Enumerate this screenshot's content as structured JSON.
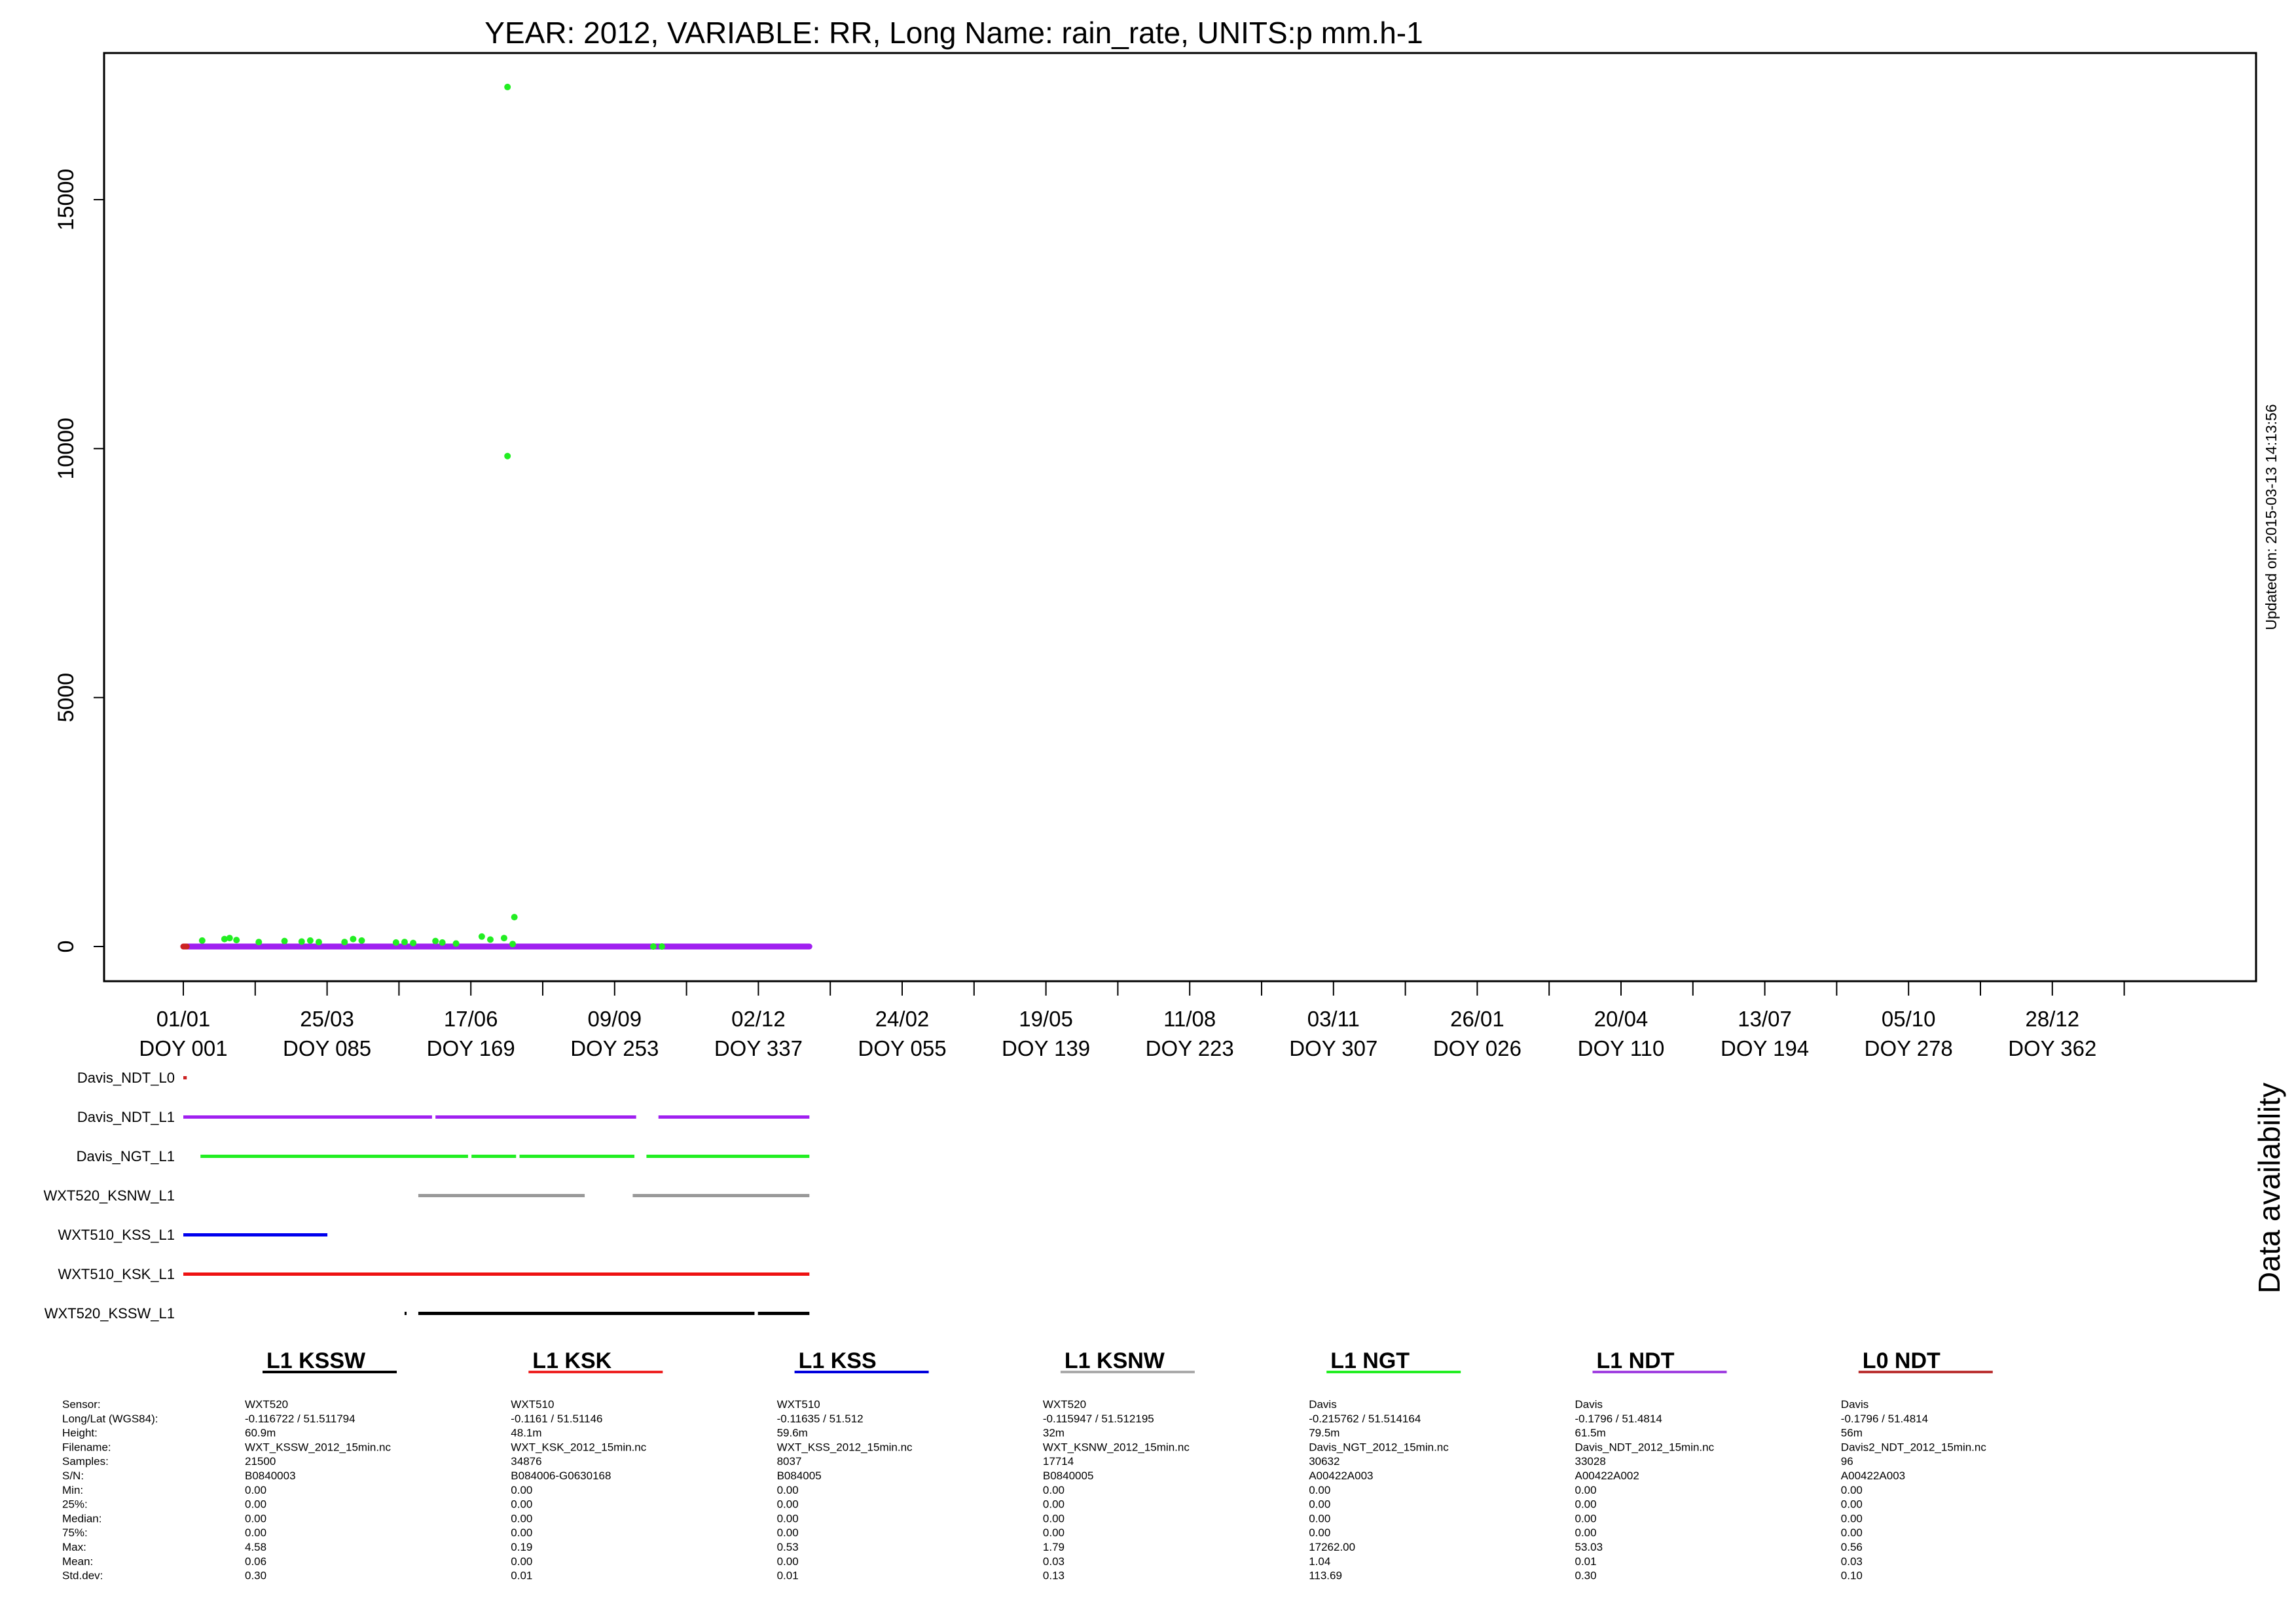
{
  "chart_data": {
    "type": "scatter",
    "title": "YEAR: 2012, VARIABLE: RR, Long Name: rain_rate, UNITS:p mm.h-1",
    "updated": "Updated on: 2015-03-13 14:13:56",
    "ylim": [
      -700,
      17700
    ],
    "y_ticks": [
      0,
      5000,
      10000,
      15000
    ],
    "y_tick_labels": [
      "0",
      "5000",
      "10000",
      "15000"
    ],
    "x_date_labels": [
      "01/01",
      "25/03",
      "17/06",
      "09/09",
      "02/12",
      "24/02",
      "19/05",
      "11/08",
      "03/11",
      "26/01",
      "20/04",
      "13/07",
      "05/10",
      "28/12"
    ],
    "x_doy_labels": [
      "DOY 001",
      "DOY 085",
      "DOY 169",
      "DOY 253",
      "DOY 337",
      "DOY 055",
      "DOY 139",
      "DOY 223",
      "DOY 307",
      "DOY 026",
      "DOY 110",
      "DOY 194",
      "DOY 278",
      "DOY 362"
    ],
    "series": [
      {
        "name": "Davis_NDT_L1",
        "color": "#a020f0",
        "start_day": 1,
        "end_day": 366,
        "value": 0
      },
      {
        "name": "Davis_NDT_L0",
        "color": "#cc2222",
        "start_day": 1,
        "end_day": 3,
        "value": 0
      },
      {
        "name": "Davis_NGT_L1",
        "color": "#22ee22",
        "points": [
          [
            12,
            120
          ],
          [
            25,
            150
          ],
          [
            28,
            170
          ],
          [
            32,
            130
          ],
          [
            45,
            90
          ],
          [
            60,
            110
          ],
          [
            70,
            100
          ],
          [
            75,
            120
          ],
          [
            80,
            90
          ],
          [
            95,
            90
          ],
          [
            100,
            150
          ],
          [
            105,
            120
          ],
          [
            125,
            80
          ],
          [
            130,
            90
          ],
          [
            135,
            70
          ],
          [
            148,
            110
          ],
          [
            152,
            80
          ],
          [
            160,
            60
          ],
          [
            175,
            200
          ],
          [
            180,
            140
          ],
          [
            188,
            170
          ],
          [
            190,
            17262
          ],
          [
            190,
            9850
          ],
          [
            193,
            50
          ],
          [
            194,
            590
          ],
          [
            275,
            0
          ],
          [
            280,
            0
          ]
        ]
      }
    ]
  },
  "availability": {
    "label": "Data availability",
    "rows": [
      {
        "name": "Davis_NDT_L0",
        "color": "#cc2222",
        "segments": [
          [
            1,
            3
          ]
        ]
      },
      {
        "name": "Davis_NDT_L1",
        "color": "#a020f0",
        "segments": [
          [
            1,
            146
          ],
          [
            148,
            265
          ],
          [
            278,
            366
          ]
        ]
      },
      {
        "name": "Davis_NGT_L1",
        "color": "#22ee22",
        "segments": [
          [
            11,
            167
          ],
          [
            169,
            195
          ],
          [
            197,
            264
          ],
          [
            271,
            366
          ]
        ]
      },
      {
        "name": "WXT520_KSNW_L1",
        "color": "#999999",
        "segments": [
          [
            138,
            235
          ],
          [
            263,
            366
          ]
        ]
      },
      {
        "name": "WXT510_KSS_L1",
        "color": "#0000ee",
        "segments": [
          [
            1,
            85
          ]
        ]
      },
      {
        "name": "WXT510_KSK_L1",
        "color": "#ee1111",
        "segments": [
          [
            1,
            366
          ]
        ]
      },
      {
        "name": "WXT520_KSSW_L1",
        "color": "#000000",
        "segments": [
          [
            130,
            131
          ],
          [
            138,
            334
          ],
          [
            336,
            366
          ]
        ]
      }
    ]
  },
  "stats": {
    "row_labels": [
      "Sensor:",
      "Long/Lat (WGS84):",
      "Height:",
      "Filename:",
      "Samples:",
      "S/N:",
      "Min:",
      "25%:",
      "Median:",
      "75%:",
      "Max:",
      "Mean:",
      "Std.dev:"
    ],
    "columns": [
      {
        "title": "L1 KSSW",
        "color": "#000000",
        "values": [
          "WXT520",
          " -0.116722 / 51.511794",
          "60.9m",
          "WXT_KSSW_2012_15min.nc",
          "21500",
          "B0840003",
          "0.00",
          "0.00",
          "0.00",
          "0.00",
          "4.58",
          "0.06",
          "0.30"
        ]
      },
      {
        "title": "L1 KSK",
        "color": "#ee2222",
        "values": [
          "WXT510",
          " -0.1161 / 51.51146",
          "48.1m",
          "WXT_KSK_2012_15min.nc",
          "34876",
          "B084006-G0630168",
          "0.00",
          "0.00",
          "0.00",
          "0.00",
          "0.19",
          "0.00",
          "0.01"
        ]
      },
      {
        "title": "L1 KSS",
        "color": "#0000dd",
        "values": [
          "WXT510",
          " -0.11635 / 51.512",
          "59.6m",
          "WXT_KSS_2012_15min.nc",
          "8037",
          "B084005",
          "0.00",
          "0.00",
          "0.00",
          "0.00",
          "0.53",
          "0.00",
          "0.01"
        ]
      },
      {
        "title": "L1 KSNW",
        "color": "#aaaaaa",
        "values": [
          "WXT520",
          " -0.115947 / 51.512195",
          "32m",
          "WXT_KSNW_2012_15min.nc",
          "17714",
          "B0840005",
          "0.00",
          "0.00",
          "0.00",
          "0.00",
          "1.79",
          "0.03",
          "0.13"
        ]
      },
      {
        "title": "L1 NGT",
        "color": "#22ee22",
        "values": [
          "Davis",
          " -0.215762 / 51.514164",
          "79.5m",
          "Davis_NGT_2012_15min.nc",
          "30632",
          "A00422A003",
          "0.00",
          "0.00",
          "0.00",
          "0.00",
          "17262.00",
          "1.04",
          "113.69"
        ]
      },
      {
        "title": "L1 NDT",
        "color": "#a040e0",
        "values": [
          "Davis",
          " -0.1796 / 51.4814",
          "61.5m",
          "Davis_NDT_2012_15min.nc",
          "33028",
          "A00422A002",
          "0.00",
          "0.00",
          "0.00",
          "0.00",
          "53.03",
          "0.01",
          "0.30"
        ]
      },
      {
        "title": "L0 NDT",
        "color": "#bb3333",
        "values": [
          "Davis",
          " -0.1796 / 51.4814",
          "56m",
          "Davis2_NDT_2012_15min.nc",
          "96",
          "A00422A003",
          "0.00",
          "0.00",
          "0.00",
          "0.00",
          "0.56",
          "0.03",
          "0.10"
        ]
      }
    ]
  }
}
